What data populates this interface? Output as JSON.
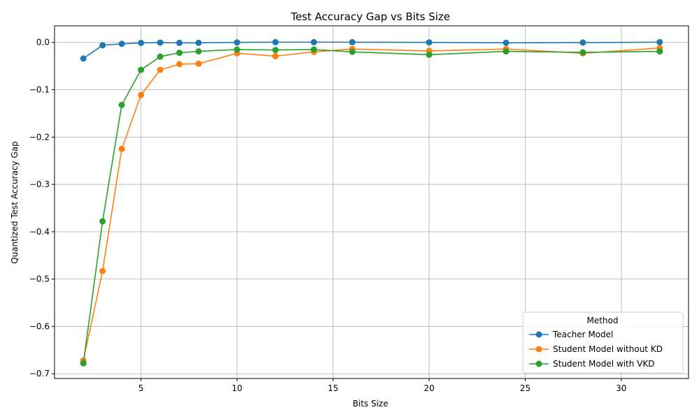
{
  "chart_data": {
    "type": "line",
    "title": "Test Accuracy Gap vs Bits Size",
    "xlabel": "Bits Size",
    "ylabel": "Quantized Test Accuracy Gap",
    "xlim": [
      0.5,
      33.5
    ],
    "ylim": [
      -0.71,
      0.035
    ],
    "xticks": [
      5,
      10,
      15,
      20,
      25,
      30
    ],
    "xtick_labels": [
      "5",
      "10",
      "15",
      "20",
      "25",
      "30"
    ],
    "yticks": [
      0.0,
      -0.1,
      -0.2,
      -0.3,
      -0.4,
      -0.5,
      -0.6,
      -0.7
    ],
    "ytick_labels": [
      "0.0",
      "−0.1",
      "−0.2",
      "−0.3",
      "−0.4",
      "−0.5",
      "−0.6",
      "−0.7"
    ],
    "grid": true,
    "legend": {
      "title": "Method",
      "position": "lower-right"
    },
    "x": [
      2,
      3,
      4,
      5,
      6,
      7,
      8,
      10,
      12,
      14,
      16,
      20,
      24,
      28,
      32
    ],
    "series": [
      {
        "name": "Teacher Model",
        "color": "#1f77b4",
        "values": [
          -0.034,
          -0.006,
          -0.003,
          -0.001,
          -0.0005,
          -0.001,
          -0.0008,
          0.0,
          0.0005,
          0.0005,
          0.0005,
          0.0,
          -0.0008,
          -0.0003,
          0.0005
        ]
      },
      {
        "name": "Student Model without KD",
        "color": "#ff7f0e",
        "values": [
          -0.672,
          -0.483,
          -0.225,
          -0.111,
          -0.058,
          -0.046,
          -0.045,
          -0.023,
          -0.029,
          -0.02,
          -0.014,
          -0.018,
          -0.014,
          -0.023,
          -0.012
        ]
      },
      {
        "name": "Student Model with VKD",
        "color": "#2ca02c",
        "values": [
          -0.678,
          -0.378,
          -0.132,
          -0.058,
          -0.03,
          -0.022,
          -0.019,
          -0.015,
          -0.016,
          -0.015,
          -0.02,
          -0.026,
          -0.019,
          -0.021,
          -0.019
        ]
      }
    ]
  }
}
